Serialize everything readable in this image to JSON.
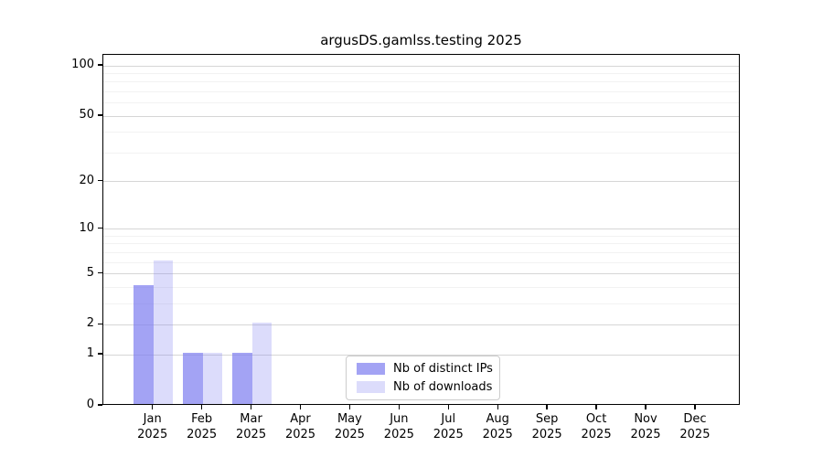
{
  "chart_data": {
    "type": "bar",
    "title": "argusDS.gamlss.testing 2025",
    "categories": [
      "Jan",
      "Feb",
      "Mar",
      "Apr",
      "May",
      "Jun",
      "Jul",
      "Aug",
      "Sep",
      "Oct",
      "Nov",
      "Dec"
    ],
    "category_year": "2025",
    "series": [
      {
        "name": "Nb of distinct IPs",
        "color": "#7c7cf0",
        "alpha": 0.7,
        "values": [
          4,
          1,
          1,
          0,
          0,
          0,
          0,
          0,
          0,
          0,
          0,
          0
        ]
      },
      {
        "name": "Nb of downloads",
        "color": "#7c7cf0",
        "alpha": 0.27,
        "values": [
          6,
          1,
          2,
          0,
          0,
          0,
          0,
          0,
          0,
          0,
          0,
          0
        ]
      }
    ],
    "yscale": "log1p",
    "ylim": [
      0,
      116.3
    ],
    "yticks": [
      100,
      50,
      20,
      10,
      5,
      2,
      1,
      0
    ],
    "minor_gridlines": [
      3,
      4,
      6,
      7,
      8,
      9,
      30,
      40,
      60,
      70,
      80,
      90
    ],
    "grid": true,
    "legend_position": "lower center",
    "xlabel": "",
    "ylabel": ""
  },
  "colors": {
    "major_grid": "#d6d6d6",
    "minor_grid": "#f2f2f2",
    "axis": "#000000",
    "background": "#ffffff"
  }
}
